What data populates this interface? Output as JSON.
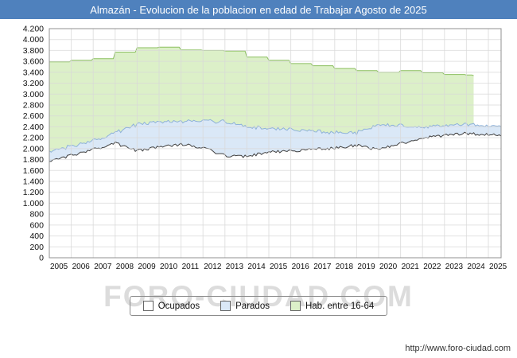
{
  "title": "Almazán - Evolucion de la poblacion en edad de Trabajar Agosto de 2025",
  "watermark": "FORO-CIUDAD.COM",
  "footer": {
    "url": "http://www.foro-ciudad.com"
  },
  "legend": [
    {
      "label": "Ocupados",
      "swatch": "#ffffff"
    },
    {
      "label": "Parados",
      "swatch": "#dae8f7"
    },
    {
      "label": "Hab. entre 16-64",
      "swatch": "#dcf0c8"
    }
  ],
  "colors": {
    "title_bar": "#4f81bd",
    "grid": "#d8d8d8",
    "plot_border": "#909090",
    "ocupados_line": "#404040",
    "parados_fill": "#dae8f7",
    "parados_stroke": "#8fb2d9",
    "hab_fill": "#dcf0c8",
    "hab_stroke": "#8bbf5f"
  },
  "chart_data": {
    "type": "area",
    "title": "Almazán - Evolucion de la poblacion en edad de Trabajar Agosto de 2025",
    "xlabel": "",
    "ylabel": "",
    "x_range": [
      2005,
      2025.58
    ],
    "ylim": [
      0,
      4200
    ],
    "ytick_step": 200,
    "x_tick_years": [
      2005,
      2006,
      2007,
      2008,
      2009,
      2010,
      2011,
      2012,
      2013,
      2014,
      2015,
      2016,
      2017,
      2018,
      2019,
      2020,
      2021,
      2022,
      2023,
      2024,
      2025
    ],
    "grid": true,
    "legend_position": "bottom",
    "series": [
      {
        "name": "Hab. entre 16-64",
        "meaning": "poblacion total en edad de trabajar (16-64), datos anuales en escalones; la serie termina a comienzos de 2024",
        "step": true,
        "jitter": 0,
        "x": [
          2005,
          2006,
          2007,
          2008,
          2009,
          2010,
          2011,
          2012,
          2013,
          2014,
          2015,
          2016,
          2017,
          2018,
          2019,
          2020,
          2021,
          2022,
          2023,
          2024,
          2024.33
        ],
        "values": [
          3590,
          3620,
          3650,
          3770,
          3850,
          3860,
          3810,
          3800,
          3790,
          3680,
          3620,
          3560,
          3520,
          3470,
          3430,
          3400,
          3430,
          3390,
          3360,
          3350,
          3340
        ]
      },
      {
        "name": "Ocupados",
        "meaning": "linea negra / area blanca, valores absolutos aproximados",
        "step": false,
        "jitter": 26,
        "x": [
          2005,
          2006,
          2007,
          2008,
          2009,
          2010,
          2011,
          2012,
          2013,
          2014,
          2015,
          2016,
          2017,
          2018,
          2019,
          2020,
          2021,
          2022,
          2023,
          2024,
          2025,
          2025.58
        ],
        "values": [
          1760,
          1880,
          1980,
          2100,
          1960,
          2030,
          2080,
          2020,
          1870,
          1860,
          1940,
          1950,
          1990,
          2010,
          2060,
          1980,
          2090,
          2190,
          2240,
          2280,
          2260,
          2230
        ]
      },
      {
        "name": "Parados",
        "meaning": "banda azul apilada sobre Ocupados; valores = numero de parados aproximado",
        "stacked_on": "Ocupados",
        "step": false,
        "jitter": 14,
        "x": [
          2005,
          2006,
          2007,
          2008,
          2009,
          2010,
          2011,
          2012,
          2013,
          2014,
          2015,
          2016,
          2017,
          2018,
          2019,
          2020,
          2021,
          2022,
          2023,
          2024,
          2025,
          2025.58
        ],
        "values": [
          180,
          170,
          160,
          190,
          480,
          460,
          420,
          500,
          620,
          540,
          430,
          390,
          330,
          290,
          230,
          450,
          330,
          200,
          170,
          175,
          160,
          170
        ]
      }
    ]
  }
}
